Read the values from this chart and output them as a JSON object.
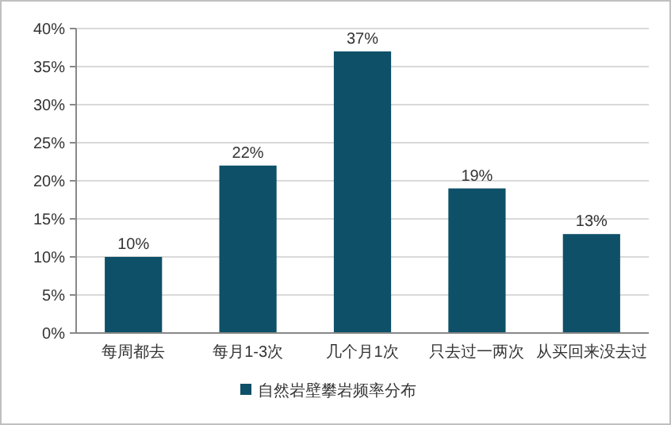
{
  "chart_data": {
    "type": "bar",
    "categories": [
      "每周都去",
      "每月1-3次",
      "几个月1次",
      "只去过一两次",
      "从买回来没去过"
    ],
    "series": [
      {
        "name": "自然岩壁攀岩频率分布",
        "color": "#0e5068",
        "values": [
          10,
          22,
          37,
          19,
          13
        ],
        "value_labels": [
          "10%",
          "22%",
          "37%",
          "19%",
          "13%"
        ]
      }
    ],
    "ylim": [
      0,
      40
    ],
    "yticks": [
      {
        "value": 0,
        "label": "0%"
      },
      {
        "value": 5,
        "label": "5%"
      },
      {
        "value": 10,
        "label": "10%"
      },
      {
        "value": 15,
        "label": "15%"
      },
      {
        "value": 20,
        "label": "20%"
      },
      {
        "value": 25,
        "label": "25%"
      },
      {
        "value": 30,
        "label": "30%"
      },
      {
        "value": 35,
        "label": "35%"
      },
      {
        "value": 40,
        "label": "40%"
      }
    ],
    "grid": "y",
    "legend": "bottom"
  }
}
